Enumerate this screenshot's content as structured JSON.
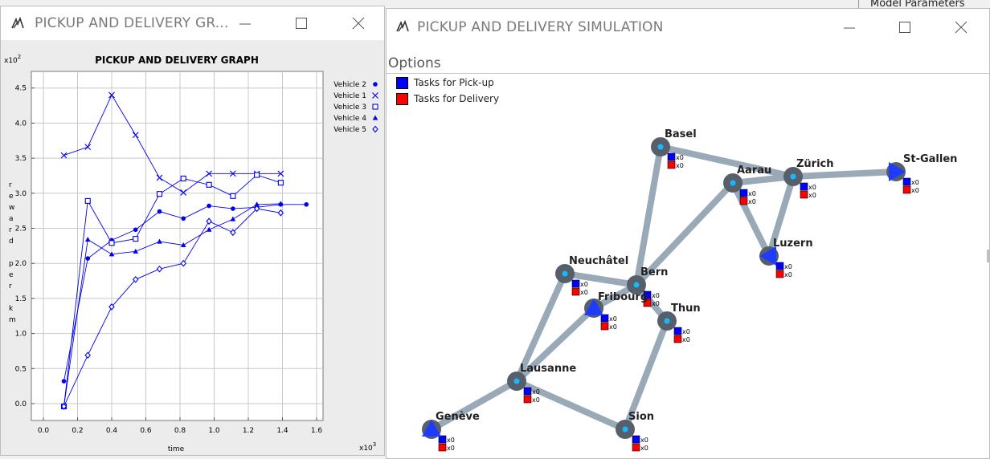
{
  "background_window": {
    "title": "Model Parameters"
  },
  "graph_window": {
    "title": "PICKUP AND DELIVERY GR...",
    "chart_data": {
      "type": "line",
      "title": "PICKUP AND DELIVERY GRAPH",
      "xlabel": "time",
      "ylabel": "reward per km",
      "x_multiplier": "x10",
      "x_exponent": "3",
      "y_multiplier": "x10",
      "y_exponent": "2",
      "xlim": [
        -0.1,
        1.65
      ],
      "ylim": [
        -0.3,
        4.65
      ],
      "x_ticks": [
        0.0,
        0.2,
        0.4,
        0.6,
        0.8,
        1.0,
        1.2,
        1.4,
        1.6
      ],
      "x_tick_labels": [
        "0.0",
        "0.2",
        "0.4",
        "0.6",
        "0.8",
        "1.0",
        "1.2",
        "1.4",
        "1.6"
      ],
      "y_ticks": [
        0.0,
        0.5,
        1.0,
        1.5,
        2.0,
        2.5,
        3.0,
        3.5,
        4.0,
        4.5
      ],
      "y_tick_labels": [
        "0.0",
        "0.5",
        "1.0",
        "1.5",
        "2.0",
        "2.5",
        "3.0",
        "3.5",
        "4.0",
        "4.5"
      ],
      "grid": true,
      "legend_position": "right",
      "series": [
        {
          "name": "Vehicle 2",
          "marker": "circle-filled",
          "x": [
            0.12,
            0.26,
            0.4,
            0.54,
            0.68,
            0.82,
            0.97,
            1.11,
            1.25,
            1.39,
            1.54
          ],
          "y": [
            0.32,
            2.07,
            2.33,
            2.48,
            2.74,
            2.64,
            2.82,
            2.78,
            2.8,
            2.84,
            2.84
          ]
        },
        {
          "name": "Vehicle 1",
          "marker": "x",
          "x": [
            0.12,
            0.26,
            0.4,
            0.54,
            0.68,
            0.82,
            0.97,
            1.11,
            1.25,
            1.39
          ],
          "y": [
            3.54,
            3.66,
            4.4,
            3.83,
            3.22,
            3.01,
            3.28,
            3.28,
            3.28,
            3.28
          ]
        },
        {
          "name": "Vehicle 3",
          "marker": "square-open",
          "x": [
            0.12,
            0.26,
            0.4,
            0.54,
            0.68,
            0.82,
            0.97,
            1.11,
            1.25,
            1.39
          ],
          "y": [
            -0.04,
            2.89,
            2.29,
            2.35,
            2.99,
            3.21,
            3.12,
            2.96,
            3.26,
            3.15
          ]
        },
        {
          "name": "Vehicle 4",
          "marker": "triangle-filled",
          "x": [
            0.12,
            0.26,
            0.4,
            0.54,
            0.68,
            0.82,
            0.97,
            1.11,
            1.25,
            1.39
          ],
          "y": [
            -0.04,
            2.34,
            2.13,
            2.17,
            2.31,
            2.26,
            2.48,
            2.63,
            2.84,
            2.85
          ]
        },
        {
          "name": "Vehicle 5",
          "marker": "diamond-open",
          "x": [
            0.12,
            0.26,
            0.4,
            0.54,
            0.68,
            0.82,
            0.97,
            1.11,
            1.25,
            1.39
          ],
          "y": [
            -0.04,
            0.69,
            1.38,
            1.77,
            1.92,
            2.0,
            2.6,
            2.44,
            2.78,
            2.72
          ]
        }
      ]
    }
  },
  "sim_window": {
    "title": "PICKUP AND DELIVERY SIMULATION",
    "menu": {
      "options": "Options"
    },
    "legend": [
      {
        "label": "Tasks for Pick-up",
        "color": "#0000ff"
      },
      {
        "label": "Tasks for Delivery",
        "color": "#ff0000"
      }
    ],
    "colors": {
      "road": "#9aa9b8",
      "city": "#56606a",
      "city_dot": "#1ab7ff",
      "vehicle": "#1f3bff",
      "pickup": "#0000ff",
      "delivery": "#ff0000"
    },
    "cities": [
      {
        "name": "Basel",
        "pickup": "x0",
        "delivery": "x0"
      },
      {
        "name": "Aarau",
        "pickup": "x0",
        "delivery": "x0"
      },
      {
        "name": "Zürich",
        "pickup": "x0",
        "delivery": "x0"
      },
      {
        "name": "St-Gallen",
        "pickup": "x0",
        "delivery": "x0"
      },
      {
        "name": "Luzern",
        "pickup": "x0",
        "delivery": "x0"
      },
      {
        "name": "Neuchâtel",
        "pickup": "x0",
        "delivery": "x0"
      },
      {
        "name": "Bern",
        "pickup": "x0",
        "delivery": "x0"
      },
      {
        "name": "Fribourg",
        "pickup": "x0",
        "delivery": "x0"
      },
      {
        "name": "Thun",
        "pickup": "x0",
        "delivery": "x0"
      },
      {
        "name": "Lausanne",
        "pickup": "x0",
        "delivery": "x0"
      },
      {
        "name": "Genève",
        "pickup": "x0",
        "delivery": "x0"
      },
      {
        "name": "Sion",
        "pickup": "x0",
        "delivery": "x0"
      }
    ],
    "roads": [
      [
        "Basel",
        "Bern"
      ],
      [
        "Basel",
        "Zürich"
      ],
      [
        "Aarau",
        "Zürich"
      ],
      [
        "Aarau",
        "Bern"
      ],
      [
        "Aarau",
        "Luzern"
      ],
      [
        "Zürich",
        "Luzern"
      ],
      [
        "Zürich",
        "St-Gallen"
      ],
      [
        "Neuchâtel",
        "Bern"
      ],
      [
        "Neuchâtel",
        "Lausanne"
      ],
      [
        "Bern",
        "Fribourg"
      ],
      [
        "Bern",
        "Thun"
      ],
      [
        "Fribourg",
        "Lausanne"
      ],
      [
        "Lausanne",
        "Genève"
      ],
      [
        "Lausanne",
        "Sion"
      ],
      [
        "Sion",
        "Thun"
      ]
    ],
    "vehicles": [
      {
        "at": "St-Gallen",
        "direction": "right"
      },
      {
        "at": "Luzern",
        "direction": "left"
      },
      {
        "at": "Fribourg",
        "direction": "up"
      },
      {
        "at": "Genève",
        "direction": "up"
      }
    ]
  }
}
